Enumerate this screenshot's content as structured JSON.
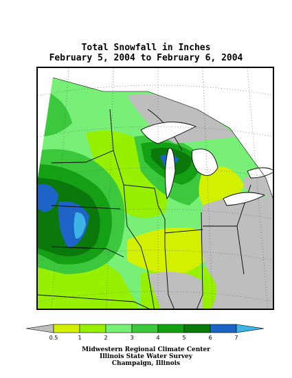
{
  "title": {
    "line1": "Total Snowfall in Inches",
    "line2": "February 5, 2004 to February 6, 2004"
  },
  "legend": {
    "ticks": [
      "0.5",
      "1",
      "2",
      "3",
      "4",
      "5",
      "6",
      "7"
    ],
    "colors": [
      "#bebebe",
      "#d2f000",
      "#96f000",
      "#78f078",
      "#3cc83c",
      "#14a014",
      "#0a780a",
      "#1e64c8",
      "#3cb4e6"
    ]
  },
  "credits": [
    "Midwestern Regional Climate Center",
    "Illinois State Water Survey",
    "Champaign, Illinois"
  ],
  "palette": {
    "no_snow": "#bebebe",
    "lt_1": "#d2f000",
    "in_1_2": "#96f000",
    "in_2_3": "#78f078",
    "in_3_4": "#3cc83c",
    "in_4_5": "#14a014",
    "in_5_6": "#0a780a",
    "in_6_7": "#1e64c8",
    "gt_7": "#3cb4e6"
  }
}
